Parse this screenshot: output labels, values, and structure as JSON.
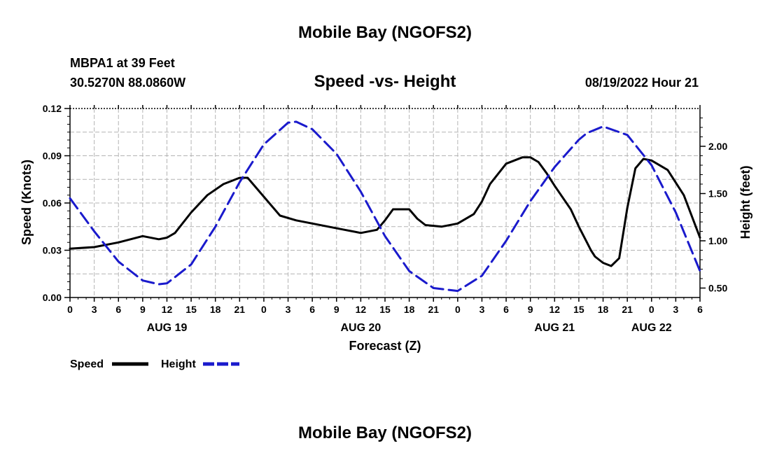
{
  "page": {
    "title": "Mobile Bay (NGOFS2)",
    "footer_title": "Mobile Bay (NGOFS2)"
  },
  "header": {
    "station": "MBPA1 at 39 Feet",
    "coords": "30.5270N  88.0860W",
    "datetime": "08/19/2022 Hour 21"
  },
  "colors": {
    "speed": "#000000",
    "height": "#1a1acc",
    "grid": "#b4b4b4"
  },
  "chart_data": {
    "type": "line",
    "title": "Speed -vs- Height",
    "xlabel": "Forecast (Z)",
    "ylabel": "Speed (Knots)",
    "y2label": "Height (feet)",
    "xlim": [
      0,
      78
    ],
    "ylim": [
      0,
      0.12
    ],
    "y2lim": [
      0.4,
      2.4
    ],
    "grid": true,
    "x_tick_values": [
      0,
      3,
      6,
      9,
      12,
      15,
      18,
      21,
      24,
      27,
      30,
      33,
      36,
      39,
      42,
      45,
      48,
      51,
      54,
      57,
      60,
      63,
      66,
      69,
      72,
      75,
      78
    ],
    "x_tick_labels": [
      "0",
      "3",
      "6",
      "9",
      "12",
      "15",
      "18",
      "21",
      "0",
      "3",
      "6",
      "9",
      "12",
      "15",
      "18",
      "21",
      "0",
      "3",
      "6",
      "9",
      "12",
      "15",
      "18",
      "21",
      "0",
      "3",
      "6"
    ],
    "y_tick_values": [
      0,
      0.03,
      0.06,
      0.09,
      0.12
    ],
    "y_tick_labels": [
      "0.00",
      "0.03",
      "0.06",
      "0.09",
      "0.12"
    ],
    "y2_tick_values": [
      0.5,
      1.0,
      1.5,
      2.0
    ],
    "y2_tick_labels": [
      "0.50",
      "1.00",
      "1.50",
      "2.00"
    ],
    "day_labels": [
      {
        "label": "AUG 19",
        "x": 12
      },
      {
        "label": "AUG 20",
        "x": 36
      },
      {
        "label": "AUG 21",
        "x": 60
      },
      {
        "label": "AUG 22",
        "x": 72
      }
    ],
    "legend": [
      {
        "name": "Speed",
        "key": "speed"
      },
      {
        "name": "Height",
        "key": "height"
      }
    ],
    "series": [
      {
        "name": "Speed",
        "key": "speed",
        "axis": "left",
        "dash": false,
        "x": [
          0,
          3,
          6,
          9,
          11,
          12,
          13,
          15,
          17,
          19,
          20,
          21,
          22,
          24,
          26,
          28,
          30,
          32,
          34,
          35,
          36,
          38,
          39,
          40,
          42,
          43,
          44,
          46,
          48,
          50,
          51,
          52,
          54,
          56,
          57,
          58,
          59,
          60,
          62,
          63,
          64,
          64.5,
          65,
          66,
          67,
          68,
          69,
          70,
          71,
          72,
          74,
          76,
          78
        ],
        "values": [
          0.031,
          0.032,
          0.035,
          0.039,
          0.037,
          0.038,
          0.041,
          0.054,
          0.065,
          0.072,
          0.074,
          0.076,
          0.076,
          0.064,
          0.052,
          0.049,
          0.047,
          0.045,
          0.043,
          0.042,
          0.041,
          0.043,
          0.049,
          0.056,
          0.056,
          0.05,
          0.046,
          0.045,
          0.047,
          0.053,
          0.061,
          0.072,
          0.085,
          0.089,
          0.089,
          0.086,
          0.079,
          0.071,
          0.056,
          0.045,
          0.035,
          0.03,
          0.026,
          0.022,
          0.02,
          0.025,
          0.057,
          0.082,
          0.088,
          0.087,
          0.081,
          0.065,
          0.038
        ]
      },
      {
        "name": "Height",
        "key": "height",
        "axis": "right",
        "dash": true,
        "x": [
          0,
          3,
          6,
          9,
          11,
          12,
          15,
          18,
          21,
          24,
          27,
          28,
          30,
          33,
          36,
          39,
          42,
          45,
          48,
          51,
          54,
          57,
          60,
          63,
          64,
          66,
          69,
          72,
          75,
          78
        ],
        "values": [
          1.45,
          1.1,
          0.78,
          0.58,
          0.54,
          0.55,
          0.75,
          1.15,
          1.62,
          2.02,
          2.25,
          2.26,
          2.18,
          1.92,
          1.52,
          1.05,
          0.68,
          0.5,
          0.47,
          0.63,
          1.0,
          1.42,
          1.78,
          2.07,
          2.14,
          2.21,
          2.12,
          1.8,
          1.3,
          0.68
        ]
      }
    ]
  }
}
